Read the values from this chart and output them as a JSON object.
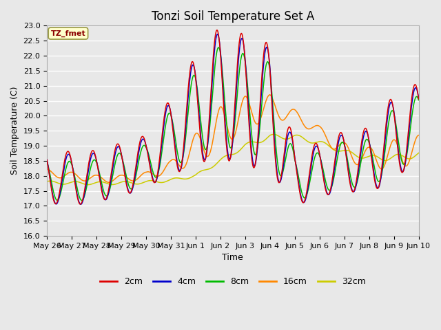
{
  "title": "Tonzi Soil Temperature Set A",
  "xlabel": "Time",
  "ylabel": "Soil Temperature (C)",
  "annotation": "TZ_fmet",
  "ylim": [
    16.0,
    23.0
  ],
  "yticks": [
    16.0,
    16.5,
    17.0,
    17.5,
    18.0,
    18.5,
    19.0,
    19.5,
    20.0,
    20.5,
    21.0,
    21.5,
    22.0,
    22.5,
    23.0
  ],
  "x_labels": [
    "May 26",
    "May 27",
    "May 28",
    "May 29",
    "May 30",
    "May 31",
    "Jun 1",
    "Jun 2",
    "Jun 3",
    "Jun 4",
    "Jun 5",
    "Jun 6",
    "Jun 7",
    "Jun 8",
    "Jun 9",
    "Jun 10"
  ],
  "colors": {
    "2cm": "#dd0000",
    "4cm": "#0000cc",
    "8cm": "#00bb00",
    "16cm": "#ff8800",
    "32cm": "#cccc00"
  },
  "legend_labels": [
    "2cm",
    "4cm",
    "8cm",
    "16cm",
    "32cm"
  ],
  "bg_color": "#e8e8e8",
  "grid_color": "#ffffff",
  "title_fontsize": 12,
  "label_fontsize": 9,
  "tick_fontsize": 8
}
